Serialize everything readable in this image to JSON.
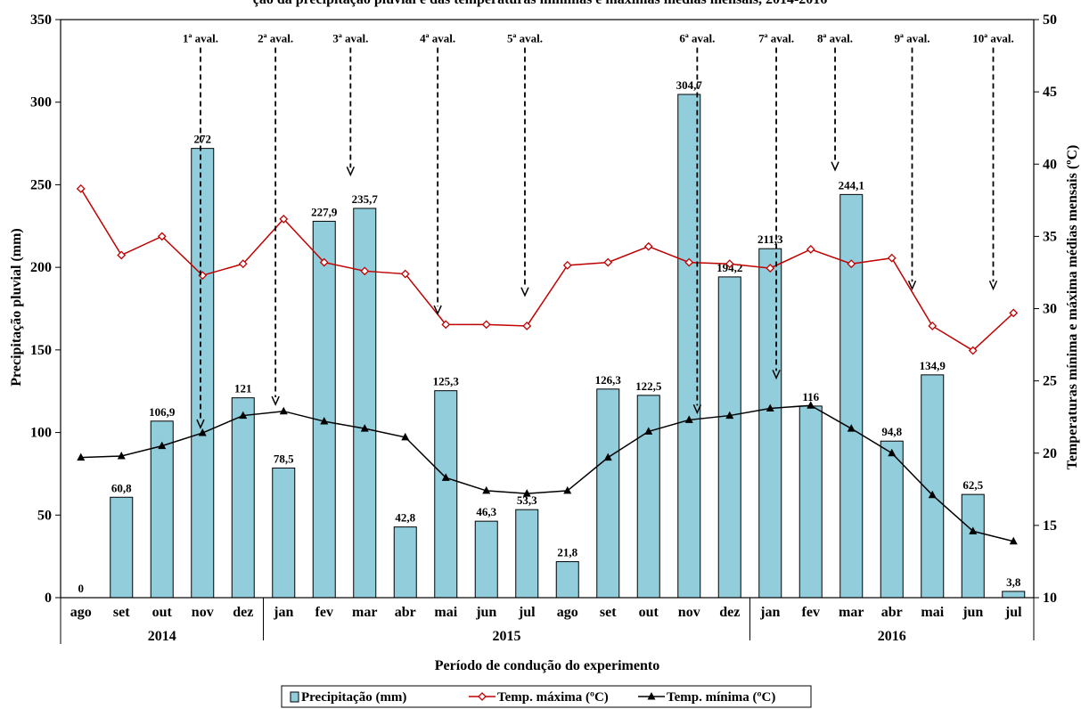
{
  "chart_data": {
    "type": "bar",
    "title": "ção da precipitação pluvial e das temperaturas mínimas e máximas médias mensais, 2014-2016",
    "xlabel": "Período de condução do experimento",
    "ylabel": "Precipitação pluvial (mm)",
    "y2label": "Temperaturas mínima e máxima médias mensais (ºC)",
    "ylim": [
      0,
      350
    ],
    "y2lim": [
      10,
      50
    ],
    "y_ticks": [
      "0",
      "50",
      "100",
      "150",
      "200",
      "250",
      "300",
      "350"
    ],
    "y2_ticks": [
      "10",
      "15",
      "20",
      "25",
      "30",
      "35",
      "40",
      "45",
      "50"
    ],
    "categories": [
      "ago",
      "set",
      "out",
      "nov",
      "dez",
      "jan",
      "fev",
      "mar",
      "abr",
      "mai",
      "jun",
      "jul",
      "ago",
      "set",
      "out",
      "nov",
      "dez",
      "jan",
      "fev",
      "mar",
      "abr",
      "mai",
      "jun",
      "jul"
    ],
    "years": [
      {
        "label": "2014",
        "start": 0,
        "end": 4
      },
      {
        "label": "2015",
        "start": 5,
        "end": 16
      },
      {
        "label": "2016",
        "start": 17,
        "end": 23
      }
    ],
    "series": [
      {
        "name": "Precipitação (mm)",
        "type": "bar",
        "axis": "left",
        "color": "#92CDDC",
        "values": [
          0,
          60.8,
          106.9,
          272,
          121,
          78.5,
          227.9,
          235.7,
          42.8,
          125.3,
          46.3,
          53.3,
          21.8,
          126.3,
          122.5,
          304.7,
          194.2,
          211.3,
          116,
          244.1,
          94.8,
          134.9,
          62.5,
          3.8
        ],
        "labels": [
          "0",
          "60,8",
          "106,9",
          "272",
          "121",
          "78,5",
          "227,9",
          "235,7",
          "42,8",
          "125,3",
          "46,3",
          "53,3",
          "21,8",
          "126,3",
          "122,5",
          "304,7",
          "194,2",
          "211,3",
          "116",
          "244,1",
          "94,8",
          "134,9",
          "62,5",
          "3,8"
        ]
      },
      {
        "name": "Temp. máxima (ºC)",
        "type": "line",
        "axis": "right",
        "color": "#C00000",
        "marker": "diamond-open",
        "values": [
          38.3,
          33.7,
          35.0,
          32.3,
          33.1,
          36.2,
          33.2,
          32.6,
          32.4,
          28.9,
          28.9,
          28.8,
          33.0,
          33.2,
          34.3,
          33.2,
          33.1,
          32.8,
          34.1,
          33.1,
          33.5,
          28.8,
          27.1,
          29.7
        ]
      },
      {
        "name": "Temp. mínima (ºC)",
        "type": "line",
        "axis": "right",
        "color": "#000000",
        "marker": "triangle",
        "values": [
          19.7,
          19.8,
          20.5,
          21.4,
          22.6,
          22.9,
          22.2,
          21.7,
          21.1,
          18.3,
          17.4,
          17.2,
          17.4,
          19.7,
          21.5,
          22.3,
          22.6,
          23.1,
          23.3,
          21.7,
          20.0,
          17.1,
          14.6,
          13.9
        ]
      }
    ],
    "evaluations": [
      {
        "label": "1ª aval.",
        "pos": 3.45,
        "top": 333,
        "bottom": 103
      },
      {
        "label": "2ª aval.",
        "pos": 5.3,
        "top": 333,
        "bottom": 117
      },
      {
        "label": "3ª aval.",
        "pos": 7.15,
        "top": 333,
        "bottom": 256
      },
      {
        "label": "4ª aval.",
        "pos": 9.3,
        "top": 333,
        "bottom": 172
      },
      {
        "label": "5ª aval.",
        "pos": 11.45,
        "top": 333,
        "bottom": 183
      },
      {
        "label": "6ª aval.",
        "pos": 15.7,
        "top": 333,
        "bottom": 112
      },
      {
        "label": "7ª aval.",
        "pos": 17.65,
        "top": 333,
        "bottom": 133
      },
      {
        "label": "8ª aval.",
        "pos": 19.1,
        "top": 333,
        "bottom": 259
      },
      {
        "label": "9ª aval.",
        "pos": 21.0,
        "top": 333,
        "bottom": 187
      },
      {
        "label": "10ª aval.",
        "pos": 23.0,
        "top": 333,
        "bottom": 187
      }
    ],
    "legend": {
      "position": "bottom"
    },
    "grid": false
  }
}
